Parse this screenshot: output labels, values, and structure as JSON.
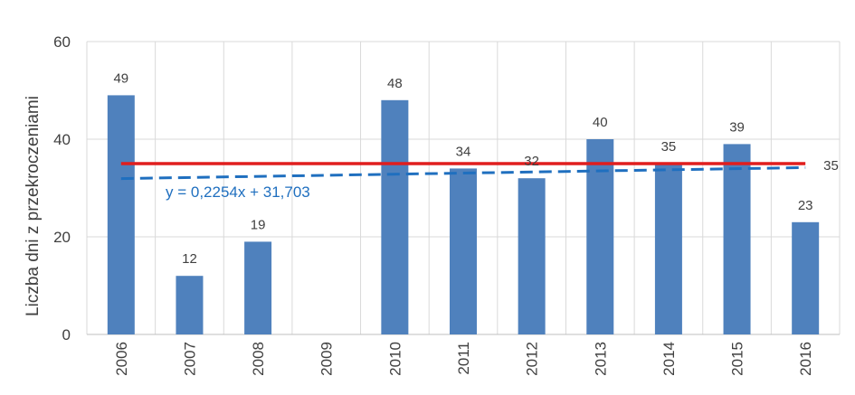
{
  "chart_data": {
    "type": "bar",
    "categories": [
      "2006",
      "2007",
      "2008",
      "2009",
      "2010",
      "2011",
      "2012",
      "2013",
      "2014",
      "2015",
      "2016"
    ],
    "values": [
      49,
      12,
      19,
      null,
      48,
      34,
      32,
      40,
      35,
      39,
      23
    ],
    "data_labels": [
      "49",
      "12",
      "19",
      "",
      "48",
      "34",
      "32",
      "40",
      "35",
      "39",
      "23"
    ],
    "ylabel": "Liczba dni z przekroczeniami",
    "ylim": [
      0,
      60
    ],
    "yticks": [
      0,
      20,
      40,
      60
    ],
    "ytick_labels": [
      "0",
      "20",
      "40",
      "60"
    ],
    "grid": true,
    "bar_color": "#4F81BD",
    "reference_line": {
      "value": 35,
      "label": "35",
      "color": "#E01E1E"
    },
    "trendline": {
      "slope": 0.2254,
      "intercept": 31.703,
      "equation": "y = 0,2254x + 31,703",
      "color": "#1F6FBF",
      "style": "dashed"
    }
  }
}
